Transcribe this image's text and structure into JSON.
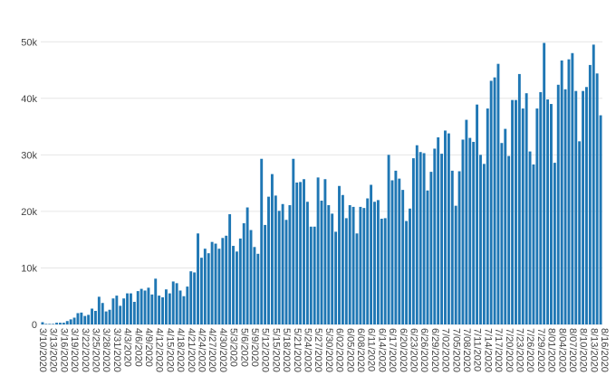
{
  "chart_data": {
    "type": "bar",
    "title": "",
    "xlabel": "",
    "ylabel": "",
    "ylim": [
      0,
      51000
    ],
    "yticks": [
      0,
      10000,
      20000,
      30000,
      40000,
      50000
    ],
    "ytick_labels": [
      "0",
      "10k",
      "20k",
      "30k",
      "40k",
      "50k"
    ],
    "grid": true,
    "legend": "none",
    "bar_color": "#1f77b4",
    "x_tick_labels": [
      "3/10/2020",
      "3/13/2020",
      "3/16/2020",
      "3/19/2020",
      "3/22/2020",
      "3/25/2020",
      "3/28/2020",
      "3/31/2020",
      "4/3/2020",
      "4/6/2020",
      "4/9/2020",
      "4/12/2020",
      "4/15/2020",
      "4/18/2020",
      "4/21/2020",
      "4/24/2020",
      "4/27/2020",
      "4/30/2020",
      "5/3/2020",
      "5/6/2020",
      "5/9/2020",
      "5/12/2020",
      "5/15/2020",
      "5/18/2020",
      "5/21/2020",
      "5/24/2020",
      "5/27/2020",
      "5/30/2020",
      "6/02/2020",
      "6/05/2020",
      "6/08/2020",
      "6/11/2020",
      "6/14/2020",
      "6/17/2020",
      "6/20/2020",
      "6/23/2020",
      "6/26/2020",
      "6/29/2020",
      "7/02/2020",
      "7/05/2020",
      "7/08/2020",
      "7/11/2020",
      "7/14/2020",
      "7/17/2020",
      "7/20/2020",
      "7/23/2020",
      "7/26/2020",
      "7/29/2020",
      "8/01/2020",
      "8/04/2020",
      "8/07/2020",
      "8/10/2020",
      "8/13/2020",
      "8/16/2020"
    ],
    "start_date": "3/10/2020",
    "values": [
      400,
      100,
      100,
      100,
      300,
      300,
      300,
      600,
      900,
      1200,
      2000,
      2100,
      1500,
      1700,
      2800,
      2400,
      4900,
      3800,
      2300,
      2600,
      4600,
      5100,
      3300,
      4600,
      5500,
      5500,
      4000,
      5900,
      6300,
      6000,
      6500,
      5300,
      8100,
      5100,
      4800,
      6200,
      5500,
      7600,
      7300,
      6000,
      5000,
      6700,
      9400,
      9200,
      16100,
      11800,
      13400,
      12600,
      14600,
      14300,
      13400,
      15300,
      15700,
      19500,
      13900,
      12900,
      15200,
      17900,
      20700,
      16700,
      13700,
      12500,
      29300,
      17600,
      22600,
      26600,
      22800,
      20100,
      21300,
      18500,
      21100,
      29300,
      25100,
      25200,
      25700,
      21700,
      17300,
      17300,
      26000,
      21900,
      25700,
      21100,
      19600,
      16400,
      24500,
      22900,
      18800,
      21100,
      20800,
      16100,
      20800,
      20600,
      22300,
      24700,
      21700,
      22000,
      18700,
      18800,
      30000,
      25500,
      27200,
      25800,
      23800,
      18300,
      20500,
      29400,
      31700,
      30500,
      30300,
      23700,
      27000,
      31100,
      33100,
      30200,
      34300,
      33800,
      27200,
      21000,
      27100,
      32700,
      36200,
      33000,
      32300,
      38900,
      30000,
      28400,
      38200,
      43100,
      43700,
      46100,
      32100,
      34600,
      29800,
      39700,
      39700,
      44300,
      38200,
      40900,
      30600,
      28300,
      38200,
      41100,
      49800,
      39800,
      39000,
      28600,
      42400,
      46700,
      41600,
      46900,
      48000,
      41300,
      32400,
      41300,
      42000,
      45900,
      49500,
      44400,
      37000
    ]
  }
}
